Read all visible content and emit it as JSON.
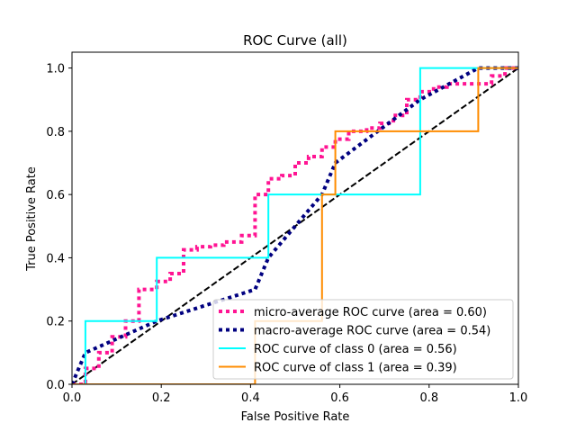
{
  "chart_data": {
    "type": "line",
    "title": "ROC Curve (all)",
    "xlabel": "False Positive Rate",
    "ylabel": "True Positive Rate",
    "xlim": [
      0.0,
      1.0
    ],
    "ylim": [
      0.0,
      1.05
    ],
    "x_ticks": [
      0.0,
      0.2,
      0.4,
      0.6,
      0.8,
      1.0
    ],
    "y_ticks": [
      0.0,
      0.2,
      0.4,
      0.6,
      0.8,
      1.0
    ],
    "x_tick_labels": [
      "0.0",
      "0.2",
      "0.4",
      "0.6",
      "0.8",
      "1.0"
    ],
    "y_tick_labels": [
      "0.0",
      "0.2",
      "0.4",
      "0.6",
      "0.8",
      "1.0"
    ],
    "grid": false,
    "legend_position": "lower-right",
    "series": [
      {
        "name": "micro-average ROC curve (area = 0.60)",
        "color": "#ff1493",
        "style": "dotted",
        "x": [
          0.0,
          0.03,
          0.03,
          0.06,
          0.06,
          0.09,
          0.09,
          0.12,
          0.12,
          0.15,
          0.15,
          0.19,
          0.19,
          0.22,
          0.22,
          0.25,
          0.25,
          0.28,
          0.28,
          0.31,
          0.31,
          0.34,
          0.34,
          0.38,
          0.38,
          0.41,
          0.41,
          0.44,
          0.44,
          0.47,
          0.47,
          0.5,
          0.5,
          0.53,
          0.53,
          0.56,
          0.56,
          0.59,
          0.59,
          0.62,
          0.62,
          0.66,
          0.66,
          0.69,
          0.69,
          0.72,
          0.72,
          0.75,
          0.75,
          0.78,
          0.78,
          0.81,
          0.81,
          0.84,
          0.84,
          0.88,
          0.88,
          0.91,
          0.91,
          0.94,
          0.94,
          0.97,
          0.97,
          1.0
        ],
        "y": [
          0.0,
          0.0,
          0.05,
          0.05,
          0.1,
          0.1,
          0.15,
          0.15,
          0.2,
          0.2,
          0.3,
          0.3,
          0.325,
          0.325,
          0.35,
          0.35,
          0.425,
          0.425,
          0.435,
          0.435,
          0.44,
          0.44,
          0.45,
          0.45,
          0.47,
          0.47,
          0.6,
          0.6,
          0.65,
          0.65,
          0.66,
          0.66,
          0.7,
          0.7,
          0.72,
          0.72,
          0.75,
          0.75,
          0.775,
          0.775,
          0.8,
          0.8,
          0.81,
          0.81,
          0.825,
          0.825,
          0.85,
          0.85,
          0.9,
          0.9,
          0.925,
          0.925,
          0.94,
          0.94,
          0.95,
          0.95,
          0.95,
          0.95,
          0.95,
          0.95,
          0.975,
          0.975,
          1.0,
          1.0
        ]
      },
      {
        "name": "macro-average ROC curve (area = 0.54)",
        "color": "#000080",
        "style": "dotted",
        "x": [
          0.0,
          0.03,
          0.19,
          0.41,
          0.44,
          0.56,
          0.59,
          0.78,
          0.91,
          1.0
        ],
        "y": [
          0.0,
          0.1,
          0.2,
          0.3,
          0.4,
          0.6,
          0.7,
          0.9,
          1.0,
          1.0
        ]
      },
      {
        "name": "ROC curve of class 0 (area = 0.56)",
        "color": "#00ffff",
        "style": "solid",
        "x": [
          0.0,
          0.03,
          0.03,
          0.19,
          0.19,
          0.44,
          0.44,
          0.78,
          0.78,
          1.0
        ],
        "y": [
          0.0,
          0.0,
          0.2,
          0.2,
          0.4,
          0.4,
          0.6,
          0.6,
          1.0,
          1.0
        ]
      },
      {
        "name": "ROC curve of class 1 (area = 0.39)",
        "color": "#ff8c00",
        "style": "solid",
        "x": [
          0.0,
          0.41,
          0.41,
          0.56,
          0.56,
          0.59,
          0.59,
          0.91,
          0.91,
          1.0
        ],
        "y": [
          0.0,
          0.0,
          0.2,
          0.2,
          0.6,
          0.6,
          0.8,
          0.8,
          1.0,
          1.0
        ]
      }
    ],
    "reference_line": {
      "color": "#000000",
      "style": "dashed",
      "x": [
        0.0,
        1.0
      ],
      "y": [
        0.0,
        1.0
      ]
    }
  }
}
